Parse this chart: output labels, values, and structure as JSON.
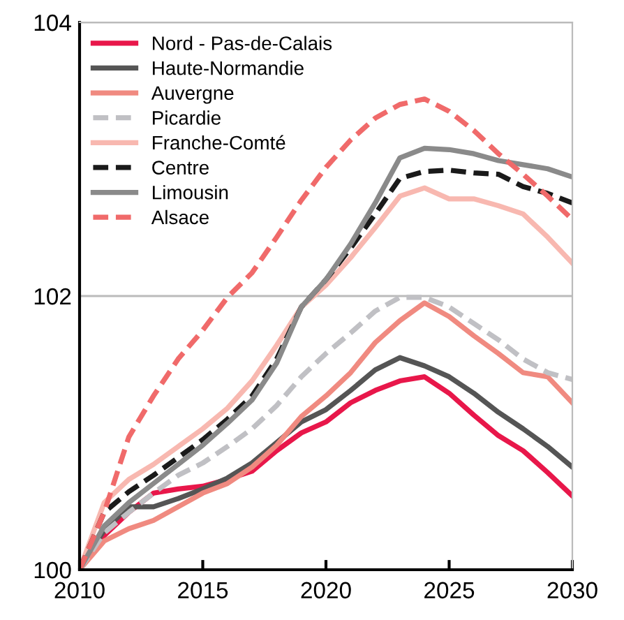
{
  "chart_data": {
    "type": "line",
    "x": [
      2010,
      2011,
      2012,
      2013,
      2014,
      2015,
      2016,
      2017,
      2018,
      2019,
      2020,
      2021,
      2022,
      2023,
      2024,
      2025,
      2026,
      2027,
      2028,
      2029,
      2030
    ],
    "xlim": [
      2010,
      2030
    ],
    "xticks": [
      2010,
      2015,
      2020,
      2025,
      2030
    ],
    "ylim": [
      100,
      104
    ],
    "yticks": [
      100,
      102,
      104
    ],
    "grid": "y",
    "legend": "top left",
    "marker": "none",
    "series": [
      {
        "name": "Nord - Pas-de-Calais",
        "color": "#e8174a",
        "line_style": "solid",
        "values": [
          100,
          100.25,
          100.42,
          100.56,
          100.59,
          100.61,
          100.66,
          100.72,
          100.87,
          101.0,
          101.08,
          101.22,
          101.31,
          101.38,
          101.41,
          101.29,
          101.13,
          100.98,
          100.87,
          100.71,
          100.54
        ]
      },
      {
        "name": "Haute-Normandie",
        "color": "#555555",
        "line_style": "solid",
        "values": [
          100,
          100.29,
          100.46,
          100.46,
          100.52,
          100.59,
          100.67,
          100.78,
          100.93,
          101.08,
          101.17,
          101.31,
          101.46,
          101.55,
          101.49,
          101.41,
          101.29,
          101.15,
          101.03,
          100.9,
          100.75
        ]
      },
      {
        "name": "Auvergne",
        "color": "#f08a80",
        "line_style": "solid",
        "values": [
          100,
          100.21,
          100.3,
          100.36,
          100.46,
          100.56,
          100.63,
          100.75,
          100.91,
          101.12,
          101.27,
          101.44,
          101.66,
          101.82,
          101.95,
          101.85,
          101.71,
          101.58,
          101.44,
          101.41,
          101.22
        ]
      },
      {
        "name": "Picardie",
        "color": "#c0c0c4",
        "line_style": "dashed",
        "values": [
          100,
          100.27,
          100.42,
          100.56,
          100.69,
          100.78,
          100.9,
          101.03,
          101.2,
          101.41,
          101.58,
          101.73,
          101.89,
          101.99,
          101.99,
          101.92,
          101.8,
          101.68,
          101.54,
          101.44,
          101.39
        ]
      },
      {
        "name": "Franche-Comté",
        "color": "#f8b8b0",
        "line_style": "solid",
        "values": [
          100,
          100.49,
          100.66,
          100.77,
          100.9,
          101.03,
          101.18,
          101.38,
          101.64,
          101.92,
          102.08,
          102.28,
          102.5,
          102.73,
          102.79,
          102.71,
          102.71,
          102.66,
          102.6,
          102.43,
          102.24
        ]
      },
      {
        "name": "Centre",
        "color": "#1a1a1a",
        "line_style": "dashed",
        "values": [
          100,
          100.42,
          100.57,
          100.69,
          100.82,
          100.95,
          101.1,
          101.27,
          101.54,
          101.92,
          102.12,
          102.35,
          102.6,
          102.86,
          102.91,
          102.92,
          102.9,
          102.89,
          102.8,
          102.75,
          102.68
        ]
      },
      {
        "name": "Limousin",
        "color": "#8a8a8a",
        "line_style": "solid",
        "values": [
          100,
          100.32,
          100.49,
          100.63,
          100.77,
          100.91,
          101.07,
          101.24,
          101.51,
          101.92,
          102.12,
          102.38,
          102.68,
          103.01,
          103.08,
          103.07,
          103.04,
          102.99,
          102.96,
          102.93,
          102.87
        ]
      },
      {
        "name": "Alsace",
        "color": "#f06a6a",
        "line_style": "dashed",
        "values": [
          100,
          100.42,
          100.97,
          101.27,
          101.54,
          101.75,
          101.99,
          102.17,
          102.43,
          102.7,
          102.94,
          103.14,
          103.3,
          103.4,
          103.44,
          103.35,
          103.21,
          103.04,
          102.89,
          102.73,
          102.56
        ]
      }
    ]
  }
}
